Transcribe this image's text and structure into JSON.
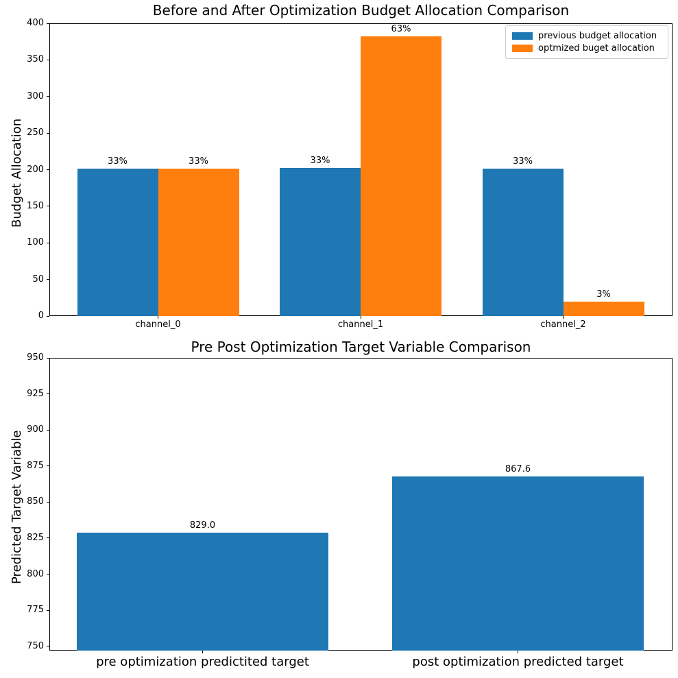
{
  "figure": {
    "background": "#ffffff",
    "accent_blue": "#1f77b4",
    "accent_orange": "#ff7f0e"
  },
  "chart_data": [
    {
      "type": "bar",
      "title": "Before and After Optimization Budget Allocation Comparison",
      "xlabel": "",
      "ylabel": "Budget Allocation",
      "categories": [
        "channel_0",
        "channel_1",
        "channel_2"
      ],
      "series": [
        {
          "name": "previous budget allocation",
          "color": "#1f77b4",
          "values": [
            201,
            202,
            201
          ],
          "bar_labels": [
            "33%",
            "33%",
            "33%"
          ]
        },
        {
          "name": "optmized buget allocation",
          "color": "#ff7f0e",
          "values": [
            201,
            382,
            20
          ],
          "bar_labels": [
            "33%",
            "63%",
            "3%"
          ]
        }
      ],
      "ylim": [
        0,
        400
      ],
      "yticks": [
        0,
        50,
        100,
        150,
        200,
        250,
        300,
        350,
        400
      ],
      "grid": false,
      "legend_position": "upper right"
    },
    {
      "type": "bar",
      "title": "Pre Post Optimization Target Variable Comparison",
      "xlabel": "",
      "ylabel": "Predicted Target Variable",
      "categories": [
        "pre optimization predictited target",
        "post optimization predicted target"
      ],
      "series": [
        {
          "name": "",
          "color": "#1f77b4",
          "values": [
            829.0,
            867.6
          ],
          "bar_labels": [
            "829.0",
            "867.6"
          ]
        }
      ],
      "ylim": [
        747,
        950
      ],
      "yticks": [
        750,
        775,
        800,
        825,
        850,
        875,
        900,
        925,
        950
      ],
      "grid": false,
      "legend_position": "none"
    }
  ]
}
